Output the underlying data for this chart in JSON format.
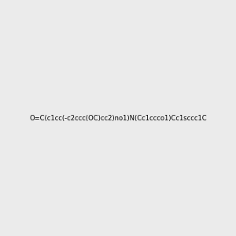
{
  "smiles": "O=C(c1cc(-c2ccc(OC)cc2)no1)N(Cc1ccco1)Cc1sccc1C",
  "img_size": [
    300,
    300
  ],
  "background_color": "#ebebeb",
  "atom_colors": {
    "N": "#0000ff",
    "O": "#ff0000",
    "S": "#cccc00"
  }
}
